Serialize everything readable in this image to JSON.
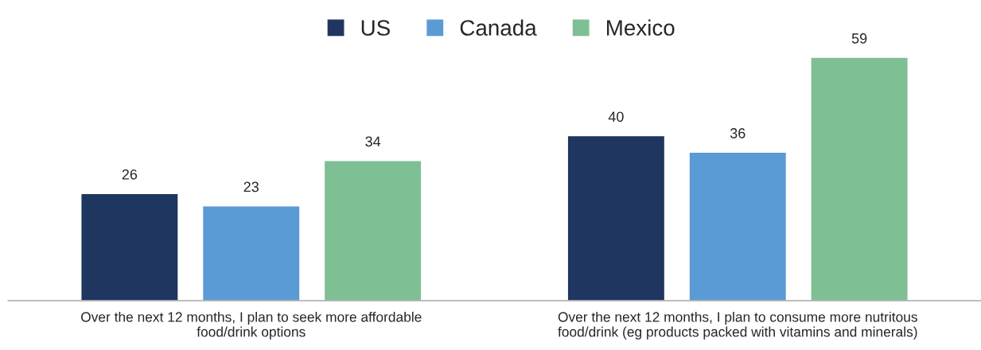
{
  "chart_data": {
    "type": "bar",
    "categories": [
      "Over the next 12 months, I plan to seek more affordable\nfood/drink options",
      "Over the next 12 months, I plan to consume more nutritous\nfood/drink (eg products packed with vitamins and minerals)"
    ],
    "series": [
      {
        "name": "US",
        "color": "#1f3660",
        "values": [
          26,
          40
        ]
      },
      {
        "name": "Canada",
        "color": "#5b9bd5",
        "values": [
          23,
          36
        ]
      },
      {
        "name": "Mexico",
        "color": "#7fbf94",
        "values": [
          34,
          59
        ]
      }
    ],
    "data_labels": true,
    "legend": "top",
    "grid": false
  }
}
